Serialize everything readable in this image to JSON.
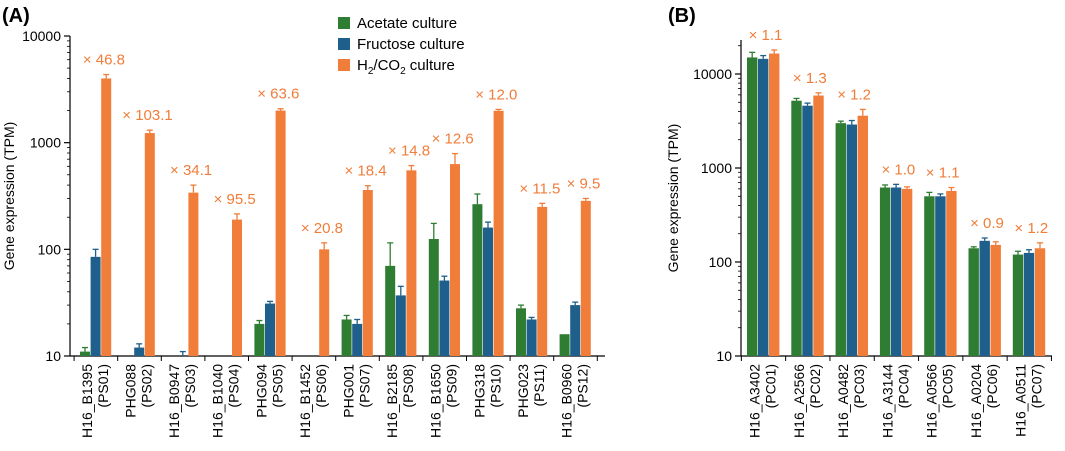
{
  "colors": {
    "acetate": "#2e7d32",
    "fructose": "#1f5f8b",
    "h2co2": "#f07d3a",
    "axis": "#000000",
    "fold": "#f07d3a"
  },
  "legend": {
    "acetate": "Acetate culture",
    "fructose": "Fructose culture",
    "h2co2_prefix": "H",
    "h2co2_sub1": "2",
    "h2co2_mid": "/CO",
    "h2co2_sub2": "2",
    "h2co2_suffix": " culture"
  },
  "chart_data": [
    {
      "panel": "(A)",
      "type": "bar",
      "scale": "log",
      "ylabel": "Gene expression (TPM)",
      "ylim": [
        10,
        10000
      ],
      "yticks": [
        "10",
        "100",
        "1000",
        "10000"
      ],
      "categories": [
        {
          "gene": "H16_B1395",
          "id": "(PS01)"
        },
        {
          "gene": "PHG088",
          "id": "(PS02)"
        },
        {
          "gene": "H16_B0947",
          "id": "(PS03)"
        },
        {
          "gene": "H16_B1040",
          "id": "(PS04)"
        },
        {
          "gene": "PHG094",
          "id": "(PS05)"
        },
        {
          "gene": "H16_B1452",
          "id": "(PS06)"
        },
        {
          "gene": "PHG001",
          "id": "(PS07)"
        },
        {
          "gene": "H16_B2185",
          "id": "(PS08)"
        },
        {
          "gene": "H16_B1650",
          "id": "(PS09)"
        },
        {
          "gene": "PHG318",
          "id": "(PS10)"
        },
        {
          "gene": "PHG023",
          "id": "(PS11)"
        },
        {
          "gene": "H16_B0960",
          "id": "(PS12)"
        }
      ],
      "series": [
        {
          "name": "Acetate culture",
          "values": [
            11,
            null,
            null,
            null,
            20,
            null,
            22,
            70,
            125,
            265,
            28,
            16
          ],
          "errors": [
            1,
            null,
            null,
            null,
            1.5,
            null,
            2,
            45,
            50,
            65,
            2,
            0
          ]
        },
        {
          "name": "Fructose culture",
          "values": [
            85,
            12,
            10,
            null,
            31,
            null,
            20,
            37,
            51,
            160,
            22,
            30
          ],
          "errors": [
            15,
            1,
            1,
            null,
            1.5,
            null,
            2,
            8,
            5,
            20,
            1,
            2
          ]
        },
        {
          "name": "H2/CO2 culture",
          "values": [
            4000,
            1230,
            340,
            190,
            2000,
            100,
            360,
            550,
            630,
            1990,
            250,
            285
          ],
          "errors": [
            350,
            80,
            60,
            25,
            80,
            15,
            35,
            60,
            160,
            60,
            20,
            15
          ]
        }
      ],
      "fold_labels": [
        "× 46.8",
        "× 103.1",
        "× 34.1",
        "× 95.5",
        "× 63.6",
        "× 20.8",
        "× 18.4",
        "× 14.8",
        "× 12.6",
        "× 12.0",
        "× 11.5",
        "× 9.5"
      ]
    },
    {
      "panel": "(B)",
      "type": "bar",
      "scale": "log",
      "ylabel": "Gene expression (TPM)",
      "ylim": [
        10,
        30000
      ],
      "yticks": [
        "10",
        "100",
        "1000",
        "10000"
      ],
      "categories": [
        {
          "gene": "H16_A3402",
          "id": "(PC01)"
        },
        {
          "gene": "H16_A2566",
          "id": "(PC02)"
        },
        {
          "gene": "H16_A0482",
          "id": "(PC03)"
        },
        {
          "gene": "H16_A3144",
          "id": "(PC04)"
        },
        {
          "gene": "H16_A0566",
          "id": "(PC05)"
        },
        {
          "gene": "H16_A0204",
          "id": "(PC06)"
        },
        {
          "gene": "H16_A0511",
          "id": "(PC07)"
        }
      ],
      "series": [
        {
          "name": "Acetate culture",
          "values": [
            15000,
            5200,
            3000,
            620,
            500,
            140,
            120
          ],
          "errors": [
            2000,
            300,
            150,
            40,
            50,
            5,
            10
          ]
        },
        {
          "name": "Fructose culture",
          "values": [
            14500,
            4600,
            2900,
            620,
            500,
            168,
            125
          ],
          "errors": [
            1200,
            300,
            300,
            50,
            30,
            12,
            10
          ]
        },
        {
          "name": "H2/CO2 culture",
          "values": [
            16500,
            5900,
            3600,
            600,
            570,
            152,
            140
          ],
          "errors": [
            1500,
            400,
            600,
            30,
            50,
            12,
            20
          ]
        }
      ],
      "fold_labels": [
        "× 1.1",
        "× 1.3",
        "× 1.2",
        "× 1.0",
        "× 1.1",
        "× 0.9",
        "× 1.2"
      ]
    }
  ]
}
